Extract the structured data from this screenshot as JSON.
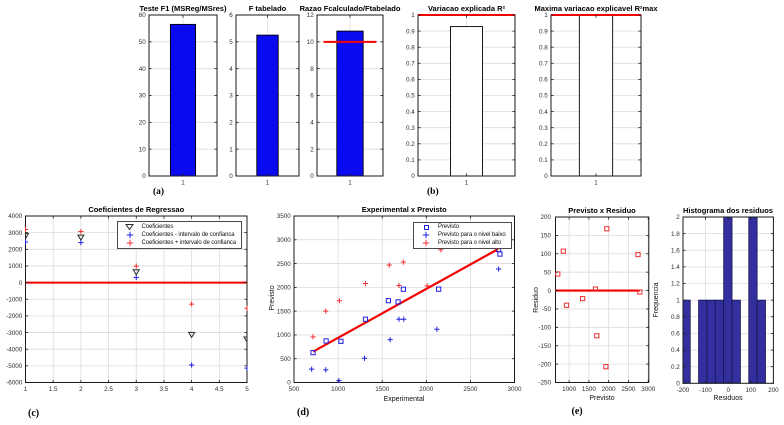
{
  "figure": {
    "background": "#ffffff",
    "letters": [
      {
        "text": "(a)"
      },
      {
        "text": "(b)"
      },
      {
        "text": "(c)"
      },
      {
        "text": "(d)"
      },
      {
        "text": "(e)"
      }
    ]
  },
  "colors": {
    "bar_blue": "#0a0af0",
    "white": "#ffffff",
    "red": "#f40000",
    "hist_fill": "#332f9e",
    "hist_edge": "#15154d",
    "grid": "#dcdcdc",
    "axis": "#1a1a1a",
    "tick_text": "#2e2e2e",
    "marker_blue": "#2020e0",
    "marker_red": "#f03030",
    "triangle_dark": "#2a2a2a"
  },
  "chart_data": [
    {
      "id": "teste-f1",
      "type": "bar",
      "title": "Teste F1 (MSReg/MSres)",
      "xlim": [
        0,
        2
      ],
      "ylim": [
        0,
        60
      ],
      "xticks": {
        "vals": [
          1
        ],
        "labels": [
          "1"
        ]
      },
      "yticks": {
        "vals": [
          0,
          10,
          20,
          30,
          40,
          50,
          60
        ],
        "labels": [
          "0",
          "10",
          "20",
          "30",
          "40",
          "50",
          "60"
        ]
      },
      "bar": {
        "value": 56.5,
        "fill": "bar_blue",
        "frac": 0.37
      }
    },
    {
      "id": "f-tabelado",
      "type": "bar",
      "title": "F tabelado",
      "xlim": [
        0,
        2
      ],
      "ylim": [
        0,
        6
      ],
      "xticks": {
        "vals": [
          1
        ],
        "labels": [
          "1"
        ]
      },
      "yticks": {
        "vals": [
          0,
          1,
          2,
          3,
          4,
          5,
          6
        ],
        "labels": [
          "0",
          "1",
          "2",
          "3",
          "4",
          "5",
          "6"
        ]
      },
      "bar": {
        "value": 5.25,
        "fill": "bar_blue",
        "frac": 0.34
      }
    },
    {
      "id": "razao-f",
      "type": "bar",
      "title": "Razao Fcalculado/Ftabelado",
      "xlim": [
        0,
        2
      ],
      "ylim": [
        0,
        12
      ],
      "xticks": {
        "vals": [
          1
        ],
        "labels": [
          "1"
        ]
      },
      "yticks": {
        "vals": [
          0,
          2,
          4,
          6,
          8,
          10,
          12
        ],
        "labels": [
          "0",
          "2",
          "4",
          "6",
          "8",
          "10",
          "12"
        ]
      },
      "bar": {
        "value": 10.8,
        "fill": "bar_blue",
        "frac": 0.4
      },
      "red_hline": {
        "y": 10,
        "x0f": 0.1,
        "x1f": 0.9
      }
    },
    {
      "id": "variacao-explicada",
      "type": "bar",
      "title": "Variacao explicada R²",
      "xlim": [
        0,
        2
      ],
      "ylim": [
        0,
        1
      ],
      "xticks": {
        "vals": [
          1
        ],
        "labels": [
          "1"
        ]
      },
      "yticks": {
        "vals": [
          0,
          0.1,
          0.2,
          0.3,
          0.4,
          0.5,
          0.6,
          0.7,
          0.8,
          0.9,
          1
        ],
        "labels": [
          "0",
          "0.1",
          "0.2",
          "0.3",
          "0.4",
          "0.5",
          "0.6",
          "0.7",
          "0.8",
          "0.9",
          "1"
        ]
      },
      "bar": {
        "value": 0.928,
        "fill": "white",
        "frac": 0.33
      },
      "red_hline": {
        "y": 1,
        "x0f": 0,
        "x1f": 1
      }
    },
    {
      "id": "maxima-variacao",
      "type": "bar",
      "title": "Maxima variacao explicavel R²max",
      "xlim": [
        0,
        2
      ],
      "ylim": [
        0,
        1
      ],
      "xticks": {
        "vals": [
          1
        ],
        "labels": [
          "1"
        ]
      },
      "yticks": {
        "vals": [
          0,
          0.1,
          0.2,
          0.3,
          0.4,
          0.5,
          0.6,
          0.7,
          0.8,
          0.9,
          1
        ],
        "labels": [
          "0",
          "0.1",
          "0.2",
          "0.3",
          "0.4",
          "0.5",
          "0.6",
          "0.7",
          "0.8",
          "0.9",
          "1"
        ]
      },
      "bar": {
        "value": 1.0,
        "fill": "white",
        "frac": 0.37
      },
      "red_hline": {
        "y": 1,
        "x0f": 0,
        "x1f": 1
      }
    },
    {
      "id": "coeficientes",
      "type": "scatter",
      "title": "Coeficientes de Regressao",
      "xlim": [
        1,
        5
      ],
      "ylim": [
        -6000,
        4000
      ],
      "xticks": {
        "vals": [
          1,
          1.5,
          2,
          2.5,
          3,
          3.5,
          4,
          4.5,
          5
        ],
        "labels": [
          "1",
          "1.5",
          "2",
          "2.5",
          "3",
          "3.5",
          "4",
          "4.5",
          "5"
        ]
      },
      "yticks": {
        "vals": [
          -6000,
          -5000,
          -4000,
          -3000,
          -2000,
          -1000,
          0,
          1000,
          2000,
          3000,
          4000
        ],
        "labels": [
          "-6000",
          "-5000",
          "-4000",
          "-3000",
          "-2000",
          "-1000",
          "0",
          "1000",
          "2000",
          "3000",
          "4000"
        ]
      },
      "red_hline": {
        "y": 0,
        "x0f": 0,
        "x1f": 1
      },
      "series": [
        {
          "name": "Coeficientes",
          "marker": "triangle",
          "color": "triangle_dark",
          "points": [
            [
              1,
              2810
            ],
            [
              2,
              2720
            ],
            [
              3,
              640
            ],
            [
              4,
              -3120
            ],
            [
              5,
              -3400
            ]
          ]
        },
        {
          "name": "Coeficientes - intervalo de confianca",
          "marker": "plus",
          "color": "marker_blue",
          "points": [
            [
              1,
              2440
            ],
            [
              2,
              2400
            ],
            [
              3,
              310
            ],
            [
              4,
              -4950
            ],
            [
              5,
              -5140
            ]
          ]
        },
        {
          "name": "Coeficientes + intervalo de confianca",
          "marker": "plus",
          "color": "marker_red",
          "points": [
            [
              1,
              3190
            ],
            [
              2,
              3070
            ],
            [
              3,
              990
            ],
            [
              4,
              -1290
            ],
            [
              5,
              -1540
            ]
          ]
        }
      ]
    },
    {
      "id": "experimental-previsto",
      "type": "scatter",
      "title": "Experimental x Previsto",
      "xlabel": "Experimental",
      "ylabel": "Previsto",
      "xlim": [
        500,
        3000
      ],
      "ylim": [
        0,
        3500
      ],
      "xticks": {
        "vals": [
          500,
          1000,
          1500,
          2000,
          2500,
          3000
        ],
        "labels": [
          "500",
          "1000",
          "1500",
          "2000",
          "2500",
          "3000"
        ]
      },
      "yticks": {
        "vals": [
          0,
          500,
          1000,
          1500,
          2000,
          2500,
          3000,
          3500
        ],
        "labels": [
          "0",
          "500",
          "1000",
          "1500",
          "2000",
          "2500",
          "3000",
          "3500"
        ]
      },
      "red_segment": [
        [
          718,
          650
        ],
        [
          2810,
          2800
        ]
      ],
      "series": [
        {
          "name": "Previsto",
          "marker": "square",
          "color": "marker_blue",
          "points": [
            [
              716,
              628
            ],
            [
              864,
              874
            ],
            [
              1032,
              866
            ],
            [
              1310,
              1330
            ],
            [
              1570,
              1720
            ],
            [
              1680,
              1695
            ],
            [
              1740,
              1960
            ],
            [
              2140,
              1962
            ],
            [
              2820,
              2795
            ],
            [
              2835,
              2700
            ]
          ]
        },
        {
          "name": "Previsto para o nivel baixo",
          "marker": "plus",
          "color": "marker_blue",
          "points": [
            [
              700,
              280
            ],
            [
              860,
              265
            ],
            [
              1010,
              40
            ],
            [
              1300,
              510
            ],
            [
              1590,
              900
            ],
            [
              1690,
              1330
            ],
            [
              1745,
              1330
            ],
            [
              2120,
              1120
            ],
            [
              2820,
              2385
            ]
          ]
        },
        {
          "name": "Previsto para o nivel alto",
          "marker": "plus",
          "color": "marker_red",
          "points": [
            [
              715,
              960
            ],
            [
              860,
              1500
            ],
            [
              1015,
              1720
            ],
            [
              1310,
              2080
            ],
            [
              1580,
              2470
            ],
            [
              1690,
              2040
            ],
            [
              1740,
              2530
            ],
            [
              2010,
              2030
            ],
            [
              2165,
              2790
            ],
            [
              2805,
              2810
            ]
          ]
        }
      ]
    },
    {
      "id": "previsto-residuo",
      "type": "scatter",
      "title": "Previsto x Residuo",
      "xlabel": "Previsto",
      "ylabel": "Residuo",
      "xlim": [
        656,
        3015
      ],
      "ylim": [
        -250,
        200
      ],
      "xticks": {
        "vals": [
          1000,
          1500,
          2000,
          2500,
          3000
        ],
        "labels": [
          "1000",
          "1500",
          "2000",
          "2500",
          "3000"
        ]
      },
      "yticks": {
        "vals": [
          -250,
          -200,
          -150,
          -100,
          -50,
          0,
          50,
          100,
          150,
          200
        ],
        "labels": [
          "-250",
          "-200",
          "-150",
          "-100",
          "-50",
          "0",
          "50",
          "100",
          "150",
          "200"
        ]
      },
      "red_segment": [
        [
          656,
          0
        ],
        [
          2790,
          0
        ]
      ],
      "series": [
        {
          "name": "Residuos",
          "marker": "square",
          "color": "marker_red",
          "points": [
            [
              714,
              45
            ],
            [
              853,
              107
            ],
            [
              934,
              -40
            ],
            [
              1341,
              -22
            ],
            [
              1665,
              4
            ],
            [
              1700,
              -123
            ],
            [
              1953,
              168
            ],
            [
              1930,
              -207
            ],
            [
              2742,
              98
            ],
            [
              2788,
              -4
            ]
          ]
        }
      ]
    },
    {
      "id": "histograma-residuos",
      "type": "hist",
      "title": "Histograma dos residuos",
      "xlabel": "Residuos",
      "ylabel": "Frequencia",
      "xlim": [
        -200,
        200
      ],
      "ylim": [
        0,
        2
      ],
      "xticks": {
        "vals": [
          -200,
          -100,
          0,
          100,
          200
        ],
        "labels": [
          "-200",
          "-100",
          "0",
          "100",
          "200"
        ]
      },
      "yticks": {
        "vals": [
          0,
          0.2,
          0.4,
          0.6,
          0.8,
          1,
          1.2,
          1.4,
          1.6,
          1.8,
          2
        ],
        "labels": [
          "0",
          "0.2",
          "0.4",
          "0.6",
          "0.8",
          "1",
          "1.2",
          "1.4",
          "1.6",
          "1.8",
          "2"
        ]
      },
      "bins": {
        "start": -205,
        "width": 37,
        "heights": [
          1,
          0,
          1,
          1,
          1,
          2,
          1,
          0,
          2,
          1
        ]
      }
    }
  ]
}
